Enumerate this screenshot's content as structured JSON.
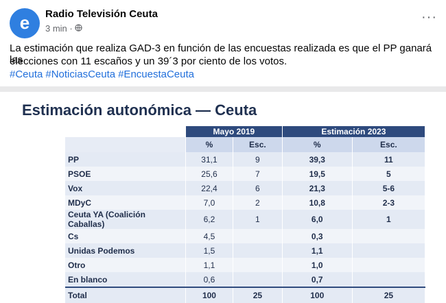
{
  "post": {
    "author": "Radio Televisión Ceuta",
    "time": "3 min ·",
    "text_lines": [
      "La estimación que realiza GAD-3 en función de las encuestas realizada es que el PP ganará las",
      "elecciones con 11 escaños y un 39´3 por ciento de los votos."
    ],
    "hashtags": [
      "#Ceuta",
      "#NoticiasCeuta",
      "#EncuestaCeuta"
    ]
  },
  "image": {
    "title": "Estimación autonómica — Ceuta",
    "table": {
      "groups": [
        "Mayo 2019",
        "Estimación 2023"
      ],
      "subheaders": [
        "%",
        "Esc.",
        "%",
        "Esc."
      ],
      "rows": [
        [
          "PP",
          "31,1",
          "9",
          "39,3",
          "11"
        ],
        [
          "PSOE",
          "25,6",
          "7",
          "19,5",
          "5"
        ],
        [
          "Vox",
          "22,4",
          "6",
          "21,3",
          "5-6"
        ],
        [
          "MDyC",
          "7,0",
          "2",
          "10,8",
          "2-3"
        ],
        [
          "Ceuta YA (Coalición Caballas)",
          "6,2",
          "1",
          "6,0",
          "1"
        ],
        [
          "Cs",
          "4,5",
          null,
          "0,3",
          null
        ],
        [
          "Unidas Podemos",
          "1,5",
          null,
          "1,1",
          null
        ],
        [
          "Otro",
          "1,1",
          null,
          "1,0",
          null
        ],
        [
          "En blanco",
          "0,6",
          null,
          "0,7",
          null
        ]
      ],
      "total": [
        "Total",
        "100",
        "25",
        "100",
        "25"
      ]
    }
  }
}
